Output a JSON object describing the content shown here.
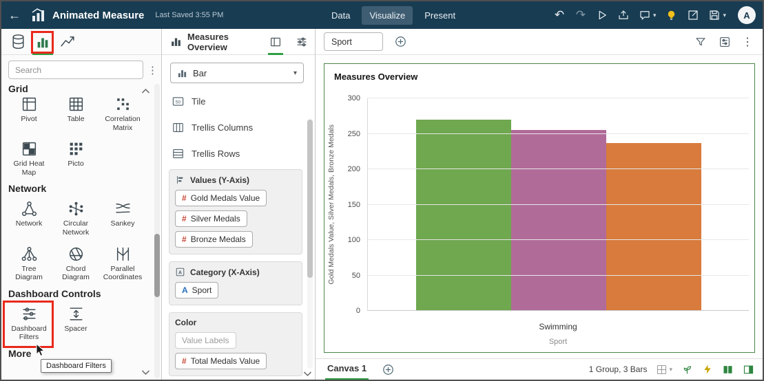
{
  "header": {
    "title": "Animated Measure",
    "last_saved": "Last Saved 3:55 PM",
    "tabs": [
      {
        "label": "Data",
        "active": false
      },
      {
        "label": "Visualize",
        "active": true
      },
      {
        "label": "Present",
        "active": false
      }
    ],
    "avatar": "A"
  },
  "icons": {
    "back": "←",
    "undo": "↶",
    "redo": "↷",
    "kebab": "⋮",
    "caret_down": "▾"
  },
  "colors": {
    "header_bg": "#183c52",
    "accent_green": "#2f9e44",
    "highlight_red": "#e8291c",
    "measure_icon": "#c74634",
    "attribute_icon": "#2a6fbd",
    "card_border": "#4a8547"
  },
  "left_panel": {
    "search_placeholder": "Search",
    "sections": {
      "grid": {
        "label": "Grid",
        "items": [
          "Pivot",
          "Table",
          "Correlation Matrix",
          "Grid Heat Map",
          "Picto"
        ]
      },
      "network": {
        "label": "Network",
        "items": [
          "Network",
          "Circular Network",
          "Sankey",
          "Tree Diagram",
          "Chord Diagram",
          "Parallel Coordinates"
        ]
      },
      "dashboard": {
        "label": "Dashboard Controls",
        "items": [
          "Dashboard Filters",
          "Spacer"
        ]
      },
      "more": {
        "label": "More"
      }
    },
    "tooltip": "Dashboard Filters"
  },
  "grammar_panel": {
    "title": "Measures Overview",
    "viz_type": "Bar",
    "rows": [
      "Tile",
      "Trellis Columns",
      "Trellis Rows"
    ],
    "values_section": {
      "label": "Values (Y-Axis)",
      "chips": [
        "Gold Medals Value",
        "Silver Medals",
        "Bronze Medals"
      ]
    },
    "category_section": {
      "label": "Category (X-Axis)",
      "chips": [
        "Sport"
      ]
    },
    "color_section": {
      "label": "Color",
      "placeholder": "Value Labels",
      "chips": [
        "Total Medals Value"
      ]
    },
    "measure_glyph": "#",
    "attribute_glyph": "A",
    "tile_glyph": "50"
  },
  "canvas": {
    "filter_chip": "Sport",
    "footer": {
      "tab": "Canvas 1",
      "status": "1 Group, 3 Bars"
    }
  },
  "chart_data": {
    "type": "bar",
    "title": "Measures Overview",
    "categories": [
      "Swimming"
    ],
    "series": [
      {
        "name": "Gold Medals Value",
        "values": [
          270
        ],
        "color": "#6fa84f"
      },
      {
        "name": "Silver Medals",
        "values": [
          255
        ],
        "color": "#b16b99"
      },
      {
        "name": "Bronze Medals",
        "values": [
          237
        ],
        "color": "#d87b3c"
      }
    ],
    "xlabel": "Sport",
    "ylabel": "Gold Medals Value, Silver Medals, Bronze Medals",
    "ylim": [
      0,
      300
    ],
    "yticks": [
      0,
      50,
      100,
      150,
      200,
      250,
      300
    ],
    "grid": true,
    "legend": "none"
  }
}
